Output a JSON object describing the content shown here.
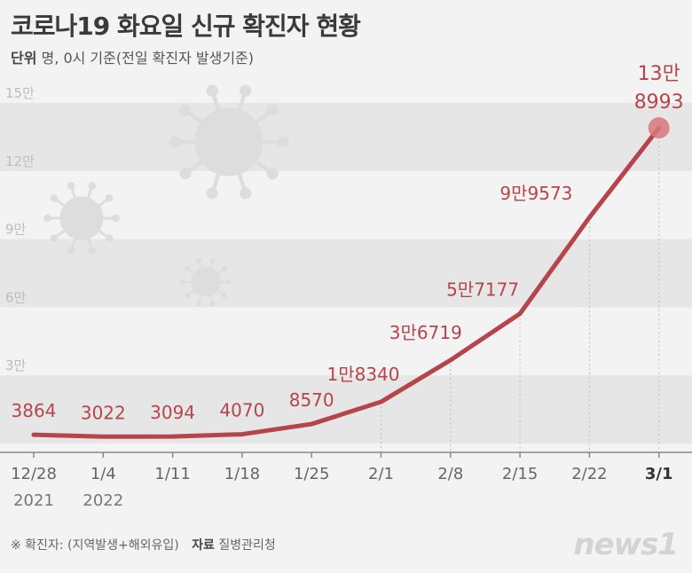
{
  "title": "코로나19 화요일 신규 확진자 현황",
  "unit_label": "단위",
  "unit_text": "명, 0시 기준(전일 확진자 발생기준)",
  "footnote": "※ 확진자: (지역발생+해외유입)",
  "source_label": "자료",
  "source": "질병관리청",
  "logo": "news1",
  "colors": {
    "line": "#b5454b",
    "label": "#b5454b",
    "highlight_dot": "#d8777c"
  },
  "chart_data": {
    "type": "line",
    "categories": [
      "12/28",
      "1/4",
      "1/11",
      "1/18",
      "1/25",
      "2/1",
      "2/8",
      "2/15",
      "2/22",
      "3/1"
    ],
    "year_labels": [
      "2021",
      "2022",
      "",
      "",
      "",
      "",
      "",
      "",
      "",
      ""
    ],
    "series": [
      {
        "values": [
          3864,
          3022,
          3094,
          4070,
          8570,
          18340,
          36719,
          57177,
          99573,
          138993
        ]
      }
    ],
    "data_labels": [
      "3864",
      "3022",
      "3094",
      "4070",
      "8570",
      "1만8340",
      "3만6719",
      "5만7177",
      "9만9573",
      "13만\n8993"
    ],
    "y_ticks": [
      {
        "value": 30000,
        "label": "3만"
      },
      {
        "value": 60000,
        "label": "6만"
      },
      {
        "value": 90000,
        "label": "9만"
      },
      {
        "value": 120000,
        "label": "12만"
      },
      {
        "value": 150000,
        "label": "15만"
      }
    ],
    "ylim": [
      0,
      150000
    ],
    "highlight_category": "3/1",
    "grid": "alternating horizontal bands",
    "legend": "none"
  }
}
